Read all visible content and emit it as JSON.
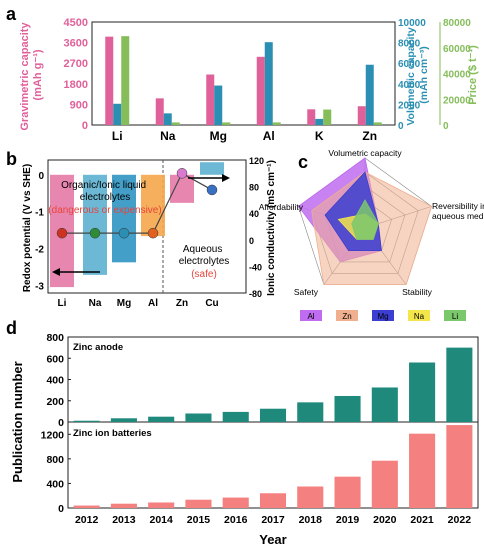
{
  "panel_labels": {
    "a": "a",
    "b": "b",
    "c": "c",
    "d": "d"
  },
  "colors": {
    "pink": "#e0609a",
    "teal": "#2a8fb3",
    "green": "#86bd5b",
    "orange_text": "#e8443c",
    "teal_bar": "#1f8a7c",
    "salmon_bar": "#f58080",
    "radar_al": "#c06cf0",
    "radar_zn": "#f0b090",
    "radar_mg": "#3b3ed0",
    "radar_na": "#f4e64a",
    "radar_li": "#7bc86c"
  },
  "chart_data": [
    {
      "panel": "a",
      "type": "bar",
      "categories": [
        "Li",
        "Na",
        "Mg",
        "Al",
        "K",
        "Zn"
      ],
      "series": [
        {
          "name": "Gravimetric capacity",
          "axis": "left",
          "values": [
            3860,
            1165,
            2205,
            2980,
            685,
            820
          ]
        },
        {
          "name": "Volumetric capacity",
          "axis": "right1",
          "values": [
            2060,
            1130,
            3830,
            8040,
            590,
            5850
          ]
        },
        {
          "name": "Price",
          "axis": "right2",
          "values": [
            69000,
            2000,
            2000,
            2000,
            12000,
            2000
          ]
        }
      ],
      "ylabel_left": "Gravimetric capacity\n(mAh g⁻¹)",
      "ylim_left": [
        0,
        4500
      ],
      "yticks_left": [
        "0",
        "900",
        "1800",
        "2700",
        "3600",
        "4500"
      ],
      "ylabel_right1": "Volumetric capacity\n(mAh cm⁻³)",
      "ylim_right1": [
        0,
        10000
      ],
      "yticks_right1": [
        "0",
        "2000",
        "4000",
        "6000",
        "8000",
        "10000"
      ],
      "ylabel_right2": "Price ($ t⁻¹)",
      "ylim_right2": [
        0,
        80000
      ],
      "yticks_right2": [
        "0",
        "20000",
        "40000",
        "60000",
        "80000"
      ]
    },
    {
      "panel": "b",
      "type": "bar",
      "categories": [
        "Li",
        "Na",
        "Mg",
        "Al",
        "Zn",
        "Cu"
      ],
      "redox_potential": [
        -3.04,
        -2.71,
        -2.37,
        -1.66,
        -0.76,
        0.34
      ],
      "ionic_conductivity": [
        10,
        10,
        10,
        10,
        100,
        75
      ],
      "ylabel_left": "Redox potential (V vs SHE)",
      "ylim_left": [
        -3.2,
        0.4
      ],
      "yticks_left": [
        "0",
        "-1",
        "-2",
        "-3"
      ],
      "ylabel_right": "Ionic conductivity (mS cm⁻¹)",
      "ylim_right": [
        -80,
        120
      ],
      "yticks_right": [
        "120",
        "80",
        "40",
        "0",
        "-40",
        "-80"
      ],
      "annotations": {
        "organic_title": "Organic/Ionic liquid\nelectrolytes",
        "organic_note": "(dangerous or expensive)",
        "aqueous_title": "Aqueous\nelectrolytes",
        "aqueous_note": "(safe)"
      }
    },
    {
      "panel": "c",
      "type": "radar",
      "axes": [
        "Volumetric capacity",
        "Reversibility in\naqueous media",
        "Stability",
        "Safety",
        "Affordability"
      ],
      "series": [
        {
          "name": "Al",
          "values": [
            5,
            1,
            2,
            3,
            5
          ]
        },
        {
          "name": "Zn",
          "values": [
            4,
            5,
            5,
            5,
            4
          ]
        },
        {
          "name": "Mg",
          "values": [
            4,
            1,
            2,
            2,
            3
          ]
        },
        {
          "name": "Na",
          "values": [
            1,
            1,
            1,
            1,
            2
          ]
        },
        {
          "name": "Li",
          "values": [
            2,
            1,
            1,
            1,
            1
          ]
        }
      ]
    },
    {
      "panel": "d",
      "type": "bar",
      "x": [
        "2012",
        "2013",
        "2014",
        "2015",
        "2016",
        "2017",
        "2018",
        "2019",
        "2020",
        "2021",
        "2022"
      ],
      "xlabel": "Year",
      "ylabel": "Publication number",
      "subplots": [
        {
          "name": "Zinc anode",
          "values": [
            12,
            35,
            50,
            80,
            95,
            125,
            185,
            245,
            325,
            560,
            700
          ],
          "ylim": [
            0,
            800
          ],
          "yticks": [
            "0",
            "200",
            "400",
            "600",
            "800"
          ]
        },
        {
          "name": "Zinc ion batteries",
          "values": [
            40,
            70,
            90,
            135,
            170,
            240,
            350,
            510,
            770,
            1210,
            1350
          ],
          "ylim": [
            0,
            1400
          ],
          "yticks": [
            "0",
            "400",
            "800",
            "1200"
          ]
        }
      ]
    }
  ]
}
